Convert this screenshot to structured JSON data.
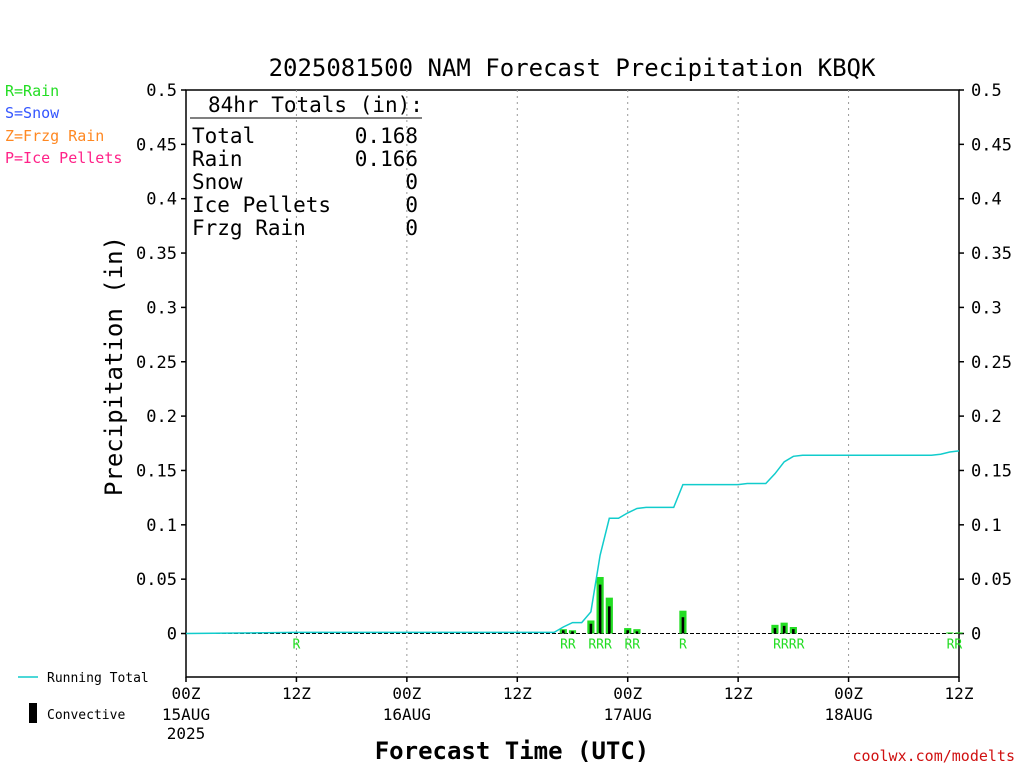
{
  "title": "2025081500 NAM Forecast Precipitation KBQK",
  "legend_types": [
    {
      "label": "R=Rain",
      "color": "#22dd22"
    },
    {
      "label": "S=Snow",
      "color": "#3355ff"
    },
    {
      "label": "Z=Frzg Rain",
      "color": "#ff8822"
    },
    {
      "label": "P=Ice Pellets",
      "color": "#ff2288"
    }
  ],
  "legend_lines": [
    {
      "label": "Running Total",
      "color": "#11cccc"
    },
    {
      "label": "Convective",
      "color": "#000000"
    }
  ],
  "totals": {
    "header": "84hr Totals (in):",
    "rows": [
      {
        "label": "Total",
        "value": "0.168"
      },
      {
        "label": "Rain",
        "value": "0.166"
      },
      {
        "label": "Snow",
        "value": "0"
      },
      {
        "label": "Ice Pellets",
        "value": "0"
      },
      {
        "label": "Frzg Rain",
        "value": "0"
      }
    ]
  },
  "watermark": "coolwx.com/modelts",
  "chart_data": {
    "type": "bar",
    "title": "2025081500 NAM Forecast Precipitation KBQK",
    "xlabel": "Forecast Time (UTC)",
    "ylabel": "Precipitation (in)",
    "xlim": [
      0,
      84
    ],
    "ylim": [
      -0.04,
      0.5
    ],
    "yticks": [
      "0.5",
      "0.45",
      "0.4",
      "0.35",
      "0.3",
      "0.25",
      "0.2",
      "0.15",
      "0.1",
      "0.05",
      "0"
    ],
    "ytick_values": [
      0.5,
      0.45,
      0.4,
      0.35,
      0.3,
      0.25,
      0.2,
      0.15,
      0.1,
      0.05,
      0
    ],
    "xticks": [
      {
        "hour": 0,
        "label": "00Z",
        "date": "15AUG",
        "year": "2025"
      },
      {
        "hour": 12,
        "label": "12Z"
      },
      {
        "hour": 24,
        "label": "00Z",
        "date": "16AUG"
      },
      {
        "hour": 36,
        "label": "12Z"
      },
      {
        "hour": 48,
        "label": "00Z",
        "date": "17AUG"
      },
      {
        "hour": 60,
        "label": "12Z"
      },
      {
        "hour": 72,
        "label": "00Z",
        "date": "18AUG"
      },
      {
        "hour": 84,
        "label": "12Z"
      }
    ],
    "grid": "vertical-dotted",
    "precip_bars": [
      {
        "hour": 12,
        "total": 0.0,
        "convective": 0.0,
        "type": "R"
      },
      {
        "hour": 41,
        "total": 0.004,
        "convective": 0.003,
        "type": "R"
      },
      {
        "hour": 42,
        "total": 0.003,
        "convective": 0.002,
        "type": "R"
      },
      {
        "hour": 44,
        "total": 0.012,
        "convective": 0.009,
        "type": "R"
      },
      {
        "hour": 45,
        "total": 0.052,
        "convective": 0.045,
        "type": "R"
      },
      {
        "hour": 46,
        "total": 0.033,
        "convective": 0.025,
        "type": "R"
      },
      {
        "hour": 48,
        "total": 0.005,
        "convective": 0.003,
        "type": "R"
      },
      {
        "hour": 49,
        "total": 0.004,
        "convective": 0.002,
        "type": "R"
      },
      {
        "hour": 54,
        "total": 0.021,
        "convective": 0.015,
        "type": "R"
      },
      {
        "hour": 64,
        "total": 0.008,
        "convective": 0.005,
        "type": "R"
      },
      {
        "hour": 65,
        "total": 0.01,
        "convective": 0.007,
        "type": "R"
      },
      {
        "hour": 66,
        "total": 0.006,
        "convective": 0.004,
        "type": "R"
      },
      {
        "hour": 83,
        "total": 0.001,
        "convective": 0.0,
        "type": "R"
      },
      {
        "hour": 84,
        "total": 0.001,
        "convective": 0.0,
        "type": "R"
      }
    ],
    "type_labels": [
      {
        "hour": 12,
        "text": "R"
      },
      {
        "hour": 41.5,
        "text": "RR"
      },
      {
        "hour": 45,
        "text": "RRR"
      },
      {
        "hour": 48.5,
        "text": "RR"
      },
      {
        "hour": 54,
        "text": "R"
      },
      {
        "hour": 65.5,
        "text": "RRRR"
      },
      {
        "hour": 83.5,
        "text": "RR"
      }
    ],
    "running_total": {
      "hours": [
        0,
        12,
        40,
        41,
        42,
        43,
        44,
        45,
        46,
        47,
        48,
        49,
        50,
        51,
        52,
        53,
        54,
        55,
        56,
        57,
        58,
        59,
        60,
        61,
        62,
        63,
        64,
        65,
        66,
        67,
        68,
        69,
        70,
        71,
        72,
        73,
        74,
        75,
        76,
        77,
        78,
        79,
        80,
        81,
        82,
        83,
        84
      ],
      "values": [
        0.0,
        0.001,
        0.001,
        0.006,
        0.01,
        0.01,
        0.02,
        0.072,
        0.106,
        0.106,
        0.111,
        0.115,
        0.116,
        0.116,
        0.116,
        0.116,
        0.137,
        0.137,
        0.137,
        0.137,
        0.137,
        0.137,
        0.137,
        0.138,
        0.138,
        0.138,
        0.147,
        0.158,
        0.163,
        0.164,
        0.164,
        0.164,
        0.164,
        0.164,
        0.164,
        0.164,
        0.164,
        0.164,
        0.164,
        0.164,
        0.164,
        0.164,
        0.164,
        0.164,
        0.165,
        0.167,
        0.168
      ]
    }
  }
}
